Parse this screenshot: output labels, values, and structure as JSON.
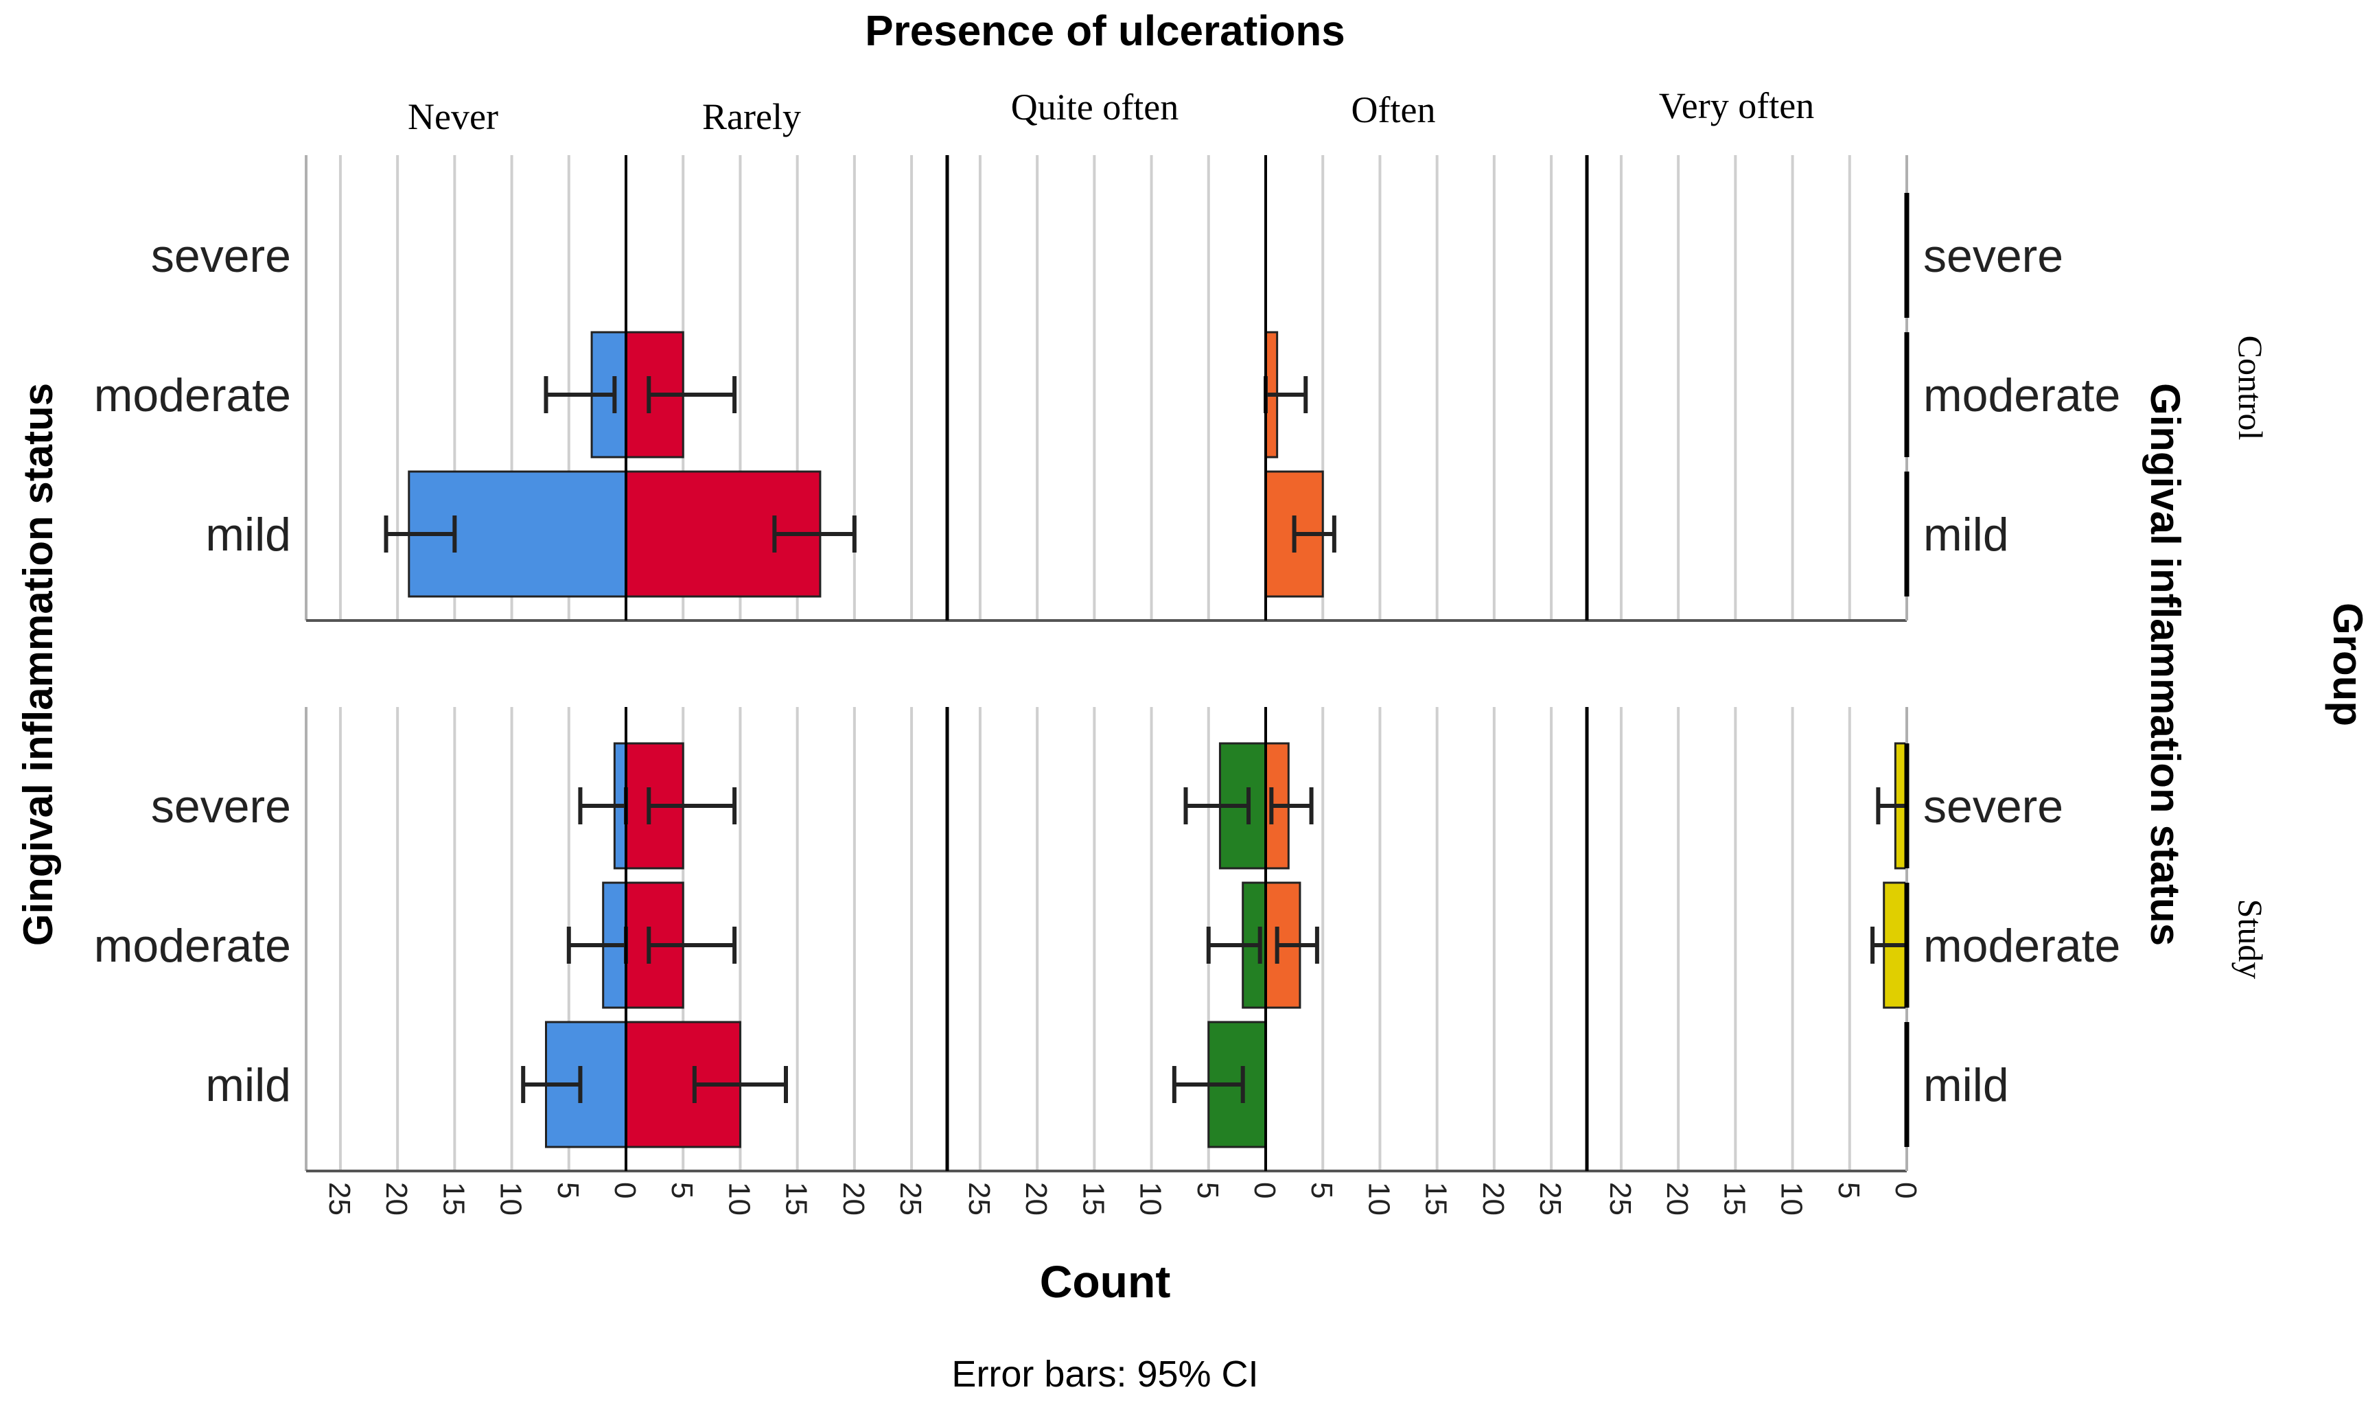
{
  "chart_data": {
    "type": "bar",
    "subtype": "population-pyramid-panels",
    "title": "Presence of ulcerations",
    "xlabel": "Count",
    "ylabel_left": "Gingival inflammation status",
    "ylabel_right": "Gingival inflammation status",
    "group_label": "Group",
    "footnote": "Error bars: 95% CI",
    "columns": [
      "Never",
      "Rarely",
      "Quite often",
      "Often",
      "Very often"
    ],
    "rows": [
      "Control",
      "Study"
    ],
    "categories": [
      "severe",
      "moderate",
      "mild"
    ],
    "x_ticks": [
      "25",
      "20",
      "15",
      "10",
      "5",
      "0",
      "5",
      "10",
      "15",
      "20",
      "25"
    ],
    "x_ticks_last": [
      "25",
      "20",
      "15",
      "10",
      "5",
      "0"
    ],
    "xlim": [
      0,
      28
    ],
    "colors": {
      "Never": "#4a90e2",
      "Rarely": "#d6002f",
      "Quite often": "#238023",
      "Often": "#f0652a",
      "Very often": "#e0cf00"
    },
    "series": [
      {
        "name": "Never",
        "side": "left",
        "Control": {
          "values": [
            0,
            3,
            19
          ],
          "ci": [
            null,
            [
              1,
              7
            ],
            [
              15,
              21
            ]
          ]
        },
        "Study": {
          "values": [
            1,
            2,
            7
          ],
          "ci": [
            [
              0,
              4
            ],
            [
              0,
              5
            ],
            [
              4,
              9
            ]
          ]
        }
      },
      {
        "name": "Rarely",
        "side": "right",
        "Control": {
          "values": [
            0,
            5,
            17
          ],
          "ci": [
            null,
            [
              2,
              9.5
            ],
            [
              13,
              20
            ]
          ]
        },
        "Study": {
          "values": [
            5,
            5,
            10
          ],
          "ci": [
            [
              2,
              9.5
            ],
            [
              2,
              9.5
            ],
            [
              6,
              14
            ]
          ]
        }
      },
      {
        "name": "Quite often",
        "side": "left",
        "Control": {
          "values": [
            0,
            0,
            0
          ],
          "ci": [
            null,
            null,
            null
          ]
        },
        "Study": {
          "values": [
            4,
            2,
            5
          ],
          "ci": [
            [
              1.5,
              7
            ],
            [
              0.5,
              5
            ],
            [
              2,
              8
            ]
          ]
        }
      },
      {
        "name": "Often",
        "side": "right",
        "Control": {
          "values": [
            0,
            1,
            5
          ],
          "ci": [
            null,
            [
              0,
              3.5
            ],
            [
              2.5,
              6
            ]
          ]
        },
        "Study": {
          "values": [
            2,
            3,
            0
          ],
          "ci": [
            [
              0.5,
              4
            ],
            [
              1,
              4.5
            ],
            null
          ]
        }
      },
      {
        "name": "Very often",
        "side": "left",
        "Control": {
          "values": [
            0,
            0,
            0
          ],
          "ci": [
            null,
            null,
            null
          ]
        },
        "Study": {
          "values": [
            1,
            2,
            0
          ],
          "ci": [
            [
              0,
              2.5
            ],
            [
              0,
              3
            ],
            null
          ]
        }
      }
    ]
  }
}
